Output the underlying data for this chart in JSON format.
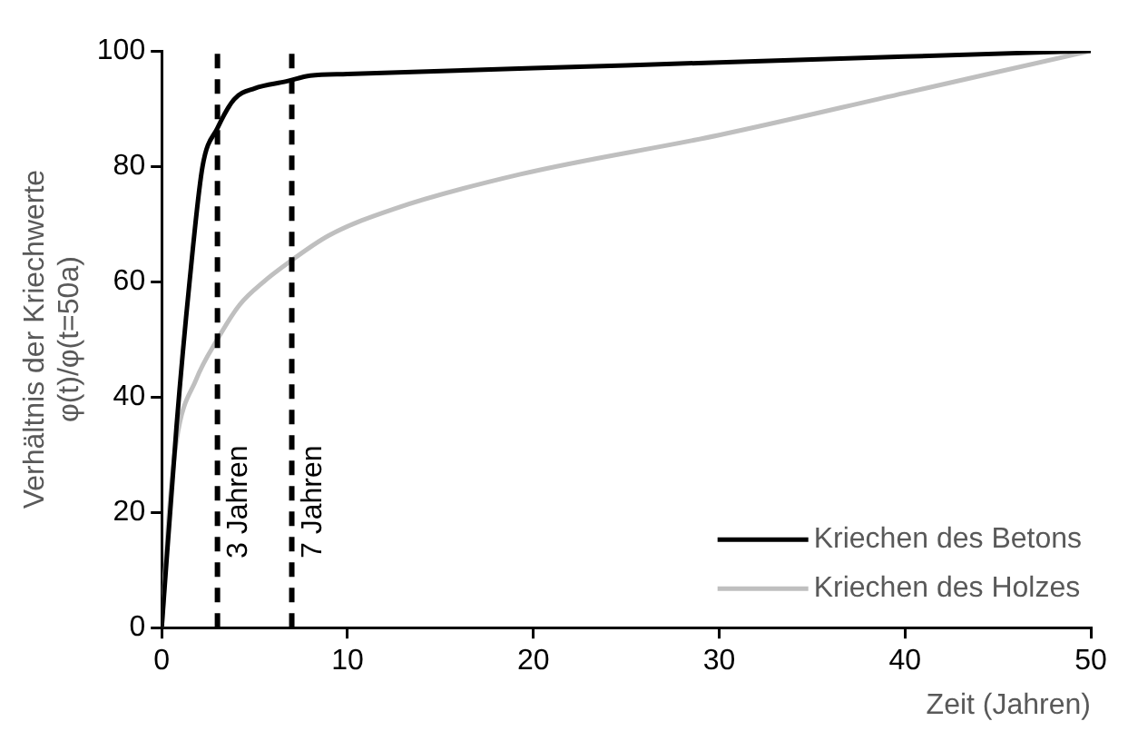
{
  "chart_data": {
    "type": "line",
    "xlabel": "Zeit (Jahren)",
    "ylabel": "Verhältnis der Kriechwerte\nφ(t)/φ(t=50a)",
    "xlim": [
      0,
      50
    ],
    "xticks": [
      0,
      10,
      20,
      30,
      40,
      50
    ],
    "ylim": [
      0,
      100
    ],
    "yticks": [
      0,
      20,
      40,
      60,
      80,
      100
    ],
    "grid": false,
    "legend": "bottom right",
    "marker": "none",
    "line_style": "solid",
    "series": [
      {
        "name": "Kriechen des Betons",
        "color": "#000000",
        "x": [
          0,
          0.8,
          1.5,
          2.2,
          3,
          3.9,
          5,
          6.7,
          8,
          10,
          20,
          30,
          40,
          50
        ],
        "values": [
          0,
          35,
          60,
          80,
          86.6,
          91.6,
          93.5,
          94.7,
          95.7,
          96,
          97,
          98,
          99,
          100
        ]
      },
      {
        "name": "Kriechen des Holzes",
        "color": "#bfbfbf",
        "x": [
          0,
          0.4,
          0.8,
          1.85,
          3,
          4.2,
          5.5,
          6.7,
          9,
          12.5,
          19.3,
          30,
          40,
          50
        ],
        "values": [
          0,
          20,
          32.5,
          43,
          50,
          56,
          60,
          63,
          68,
          72.6,
          78.6,
          85.4,
          92.7,
          100
        ]
      }
    ],
    "ref_lines": [
      {
        "axis": "x",
        "value": 3,
        "label": "3 Jahren",
        "color": "#000000",
        "line_style": "dashed"
      },
      {
        "axis": "x",
        "value": 7,
        "label": "7 Jahren",
        "color": "#000000",
        "line_style": "dashed"
      }
    ]
  }
}
